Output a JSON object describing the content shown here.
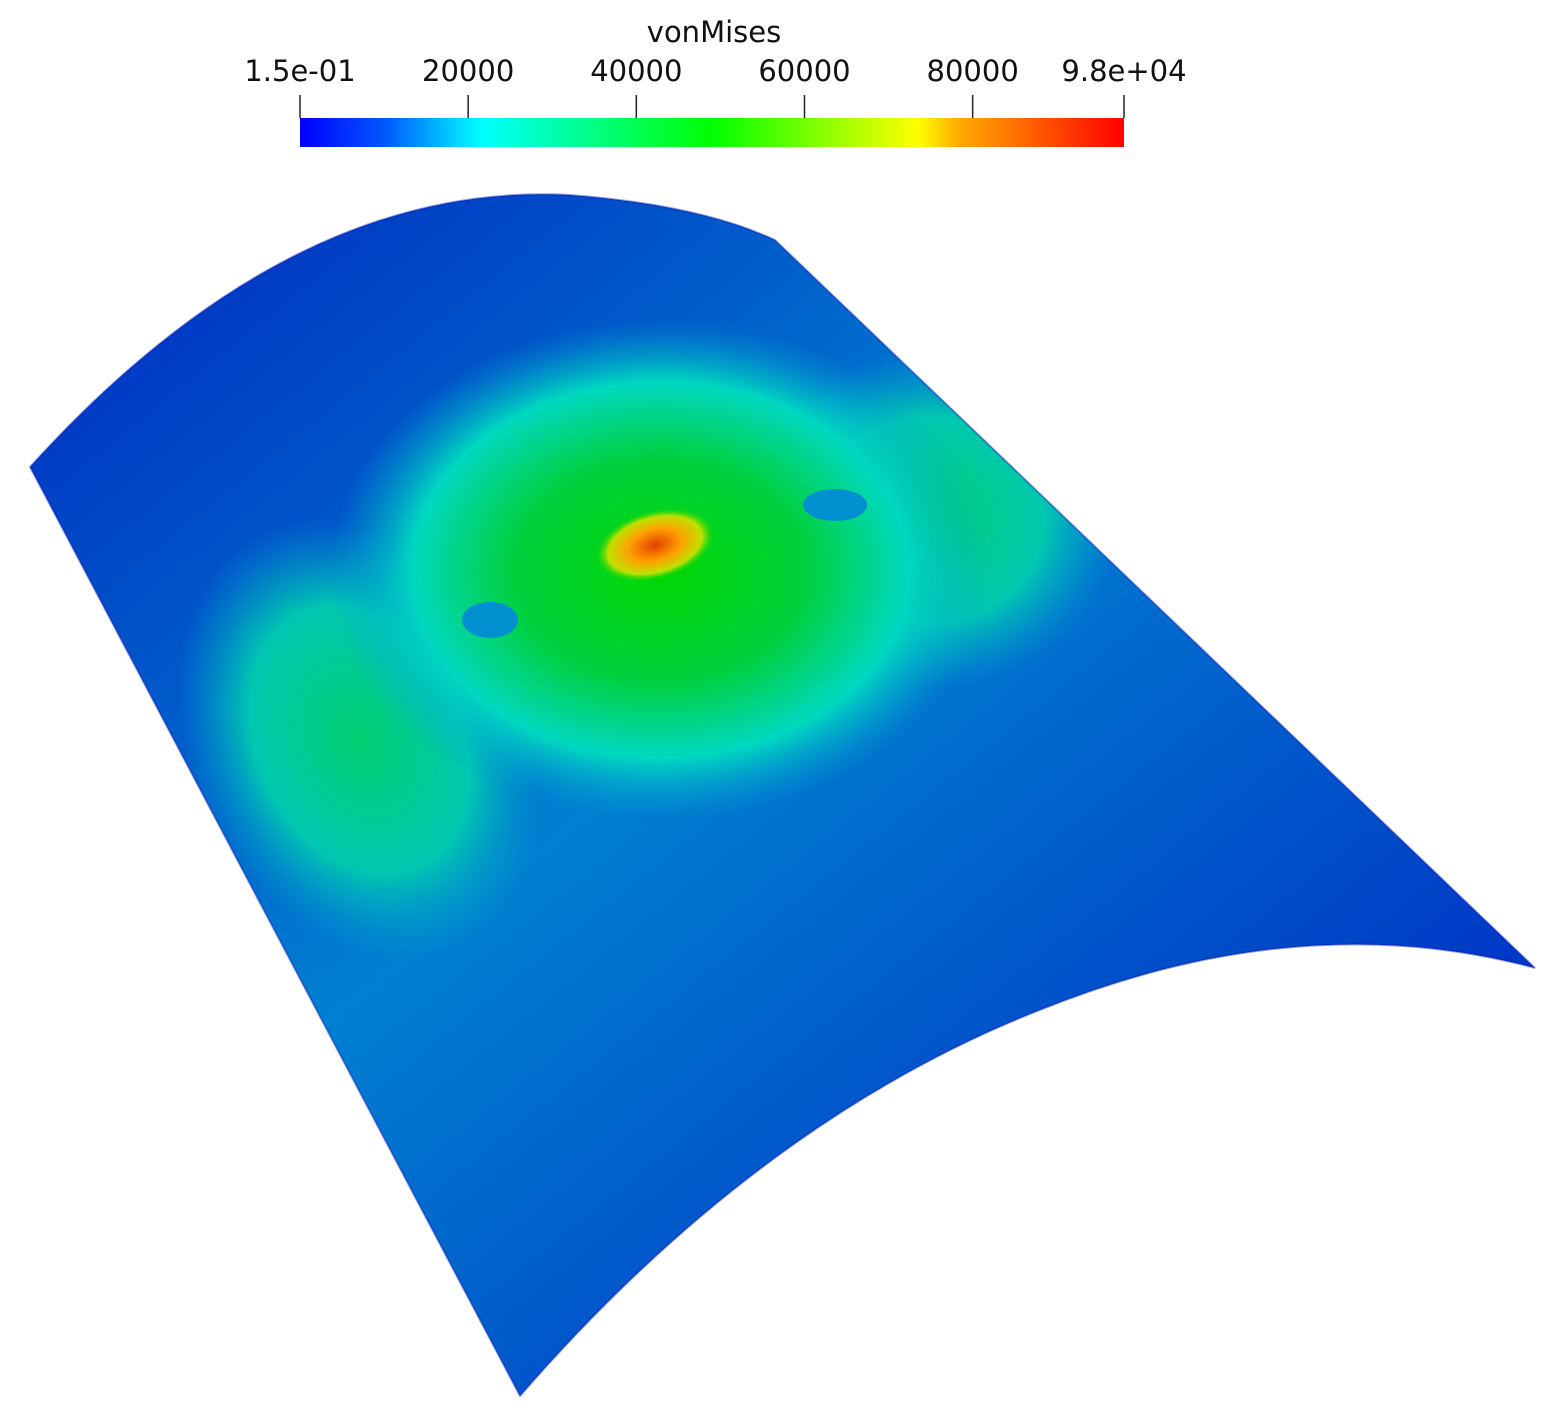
{
  "colorbar": {
    "title": "vonMises",
    "range": [
      0.15,
      98000
    ],
    "ticks": [
      {
        "value": 0.15,
        "label": "1.5e-01"
      },
      20000,
      40000,
      60000,
      80000,
      {
        "value": 98000,
        "label": "9.8e+04"
      }
    ]
  }
}
